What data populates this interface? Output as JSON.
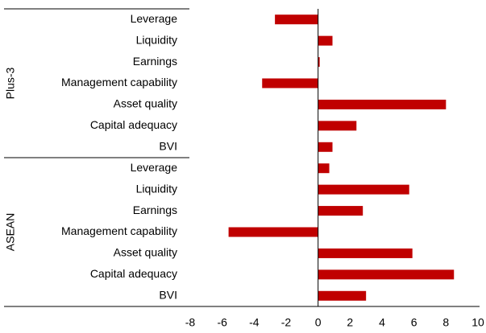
{
  "chart_data": {
    "type": "bar",
    "orientation": "horizontal",
    "color": "#c00000",
    "groups": [
      {
        "name": "Plus-3",
        "categories": [
          "Leverage",
          "Liquidity",
          "Earnings",
          "Management capability",
          "Asset quality",
          "Capital adequacy",
          "BVI"
        ],
        "values": [
          -2.7,
          0.9,
          0.1,
          -3.5,
          8.0,
          2.4,
          0.9
        ]
      },
      {
        "name": "ASEAN",
        "categories": [
          "Leverage",
          "Liquidity",
          "Earnings",
          "Management capability",
          "Asset quality",
          "Capital adequacy",
          "BVI"
        ],
        "values": [
          0.7,
          5.7,
          2.8,
          -5.6,
          5.9,
          8.5,
          3.0
        ]
      }
    ],
    "xlim": [
      -8,
      10
    ],
    "xticks": [
      -8,
      -6,
      -4,
      -2,
      0,
      2,
      4,
      6,
      8,
      10
    ]
  }
}
